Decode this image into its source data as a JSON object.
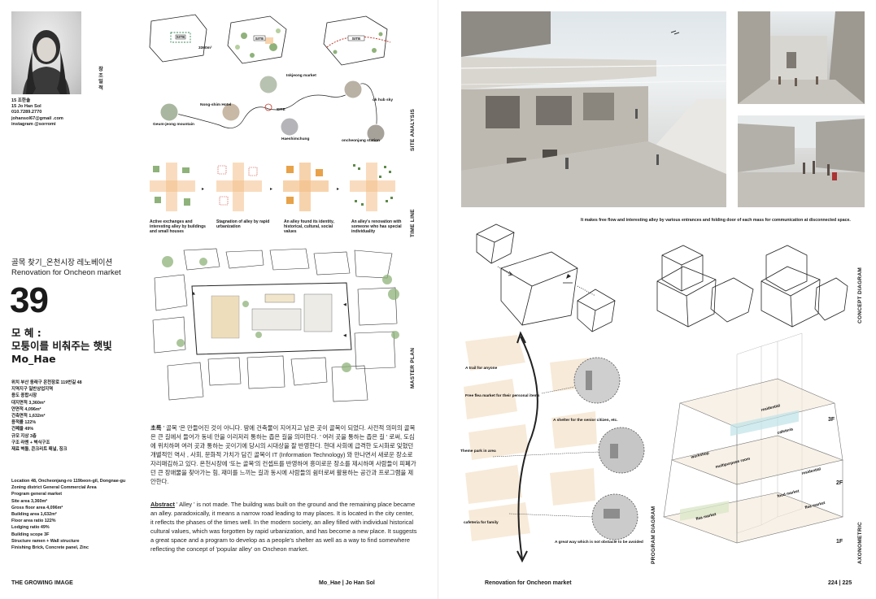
{
  "profile": {
    "name_ko_vertical": [
      "창",
      "|",
      "조",
      "일",
      "적",
      "성"
    ],
    "student_ko": "15 조한솔",
    "student_en": "15 Jo Han Sol",
    "phone": "010.7289.2770",
    "email": "johansol67@gmail .com",
    "instagram": "instagram @sorromi"
  },
  "site_analysis": {
    "label": "SITE ANALYSIS",
    "site_tags": [
      "SITE",
      "SITE",
      "SITE"
    ],
    "area": "3360m²",
    "places": [
      "Inkjeong market",
      "Nong-shim Hotel",
      "Geum-jeong mountain",
      "SITE",
      "Haeshimchung",
      "ok hub sky",
      "oncheonjang station"
    ]
  },
  "timeline": {
    "label": "TIME LINE",
    "captions": [
      "Active exchanges and interesting alley by buildings and small houses",
      "Stagnation of alley by rapid urbanization",
      "An alley found its identity, historical, cultural, social values",
      "An alley's renovation with someone who has special individuality"
    ]
  },
  "title": {
    "ko_subtitle": "골목 찾기_온천시장 레노베이션",
    "en_subtitle": "Renovation for Oncheon market",
    "number": "39",
    "author_ko": "모 혜 :",
    "tagline_ko": "모퉁이를 비춰주는 햇빛",
    "author_romaji": "Mo_Hae"
  },
  "specs_ko": [
    "위치 부산 동래구 온천장로 119번길 48",
    "지역지구 일반상업지역",
    "용도 종합시장",
    "대지면적 3,360m²",
    "연면적 4,096m²",
    "건축면적 1,632m²",
    "용적률 122%",
    "건폐율 49%",
    "규모 지상 3층",
    "구조 라멘 + 벽식구조",
    "재료 벽돌, 콘크리트 패널, 징크"
  ],
  "specs_en": [
    "Location 48, Oncheonjang-ro 119beon-gil, Dongnae-gu",
    "Zoning district General Commercial Area",
    "Program general market",
    "Site area 3,360m²",
    "Gross floor area 4,096m²",
    "Building area 1,632m²",
    "Floor area ratio 122%",
    "Lodging ratio 49%",
    "Building scope 3F",
    "Structure ramen + Wall structure",
    "Finishing Brick, Concrete panel, Zinc"
  ],
  "master_plan": {
    "label": "MASTER PLAN"
  },
  "abstract": {
    "ko_label": "초록",
    "ko_text": "' 골목 '은 만들어진 것이 아니다. 땅에 건축물이 지어지고 남은 곳이 골목이 되었다. 사전적 의미의 골목은 큰 길에서 들어가 동네 안을 이리저리 통하는 좁은 길을 의미한다. ' 여러 곳을 통하는 좁은 길 ' 로써, 도심에 위치하며 여러 곳과 통하는 곳이기에 당시의 시대상을 잘 반영한다. 현대 사회에 급격한 도시화로 잊혔던 개별적인 역사 , 사회, 문화적 가치가 담긴 골목이 IT (Information Technology) 와 만나면서 새로운 장소로 자리매김하고 있다. 온천시장에 '또는 골목'의 컨셉트를 반영하여 흥미로운 장소를 제시하며 사람들이 피폐가던 큰 장애물을 찾아가는 힘, 재미를 느끼는 길과 동시에 사람들의 쉼터로써 활용하는 공간과 프로그램을 제안한다.",
    "en_label": "Abstract",
    "en_text": "' Alley ' is not made. The buildng was built on the ground and the remaining place became an alley. paradoxically, it means a narrow road leading to may places. It is located in the city center, it reflects the phases of the times well. In the modern society, an alley filled with individual historical cultural values, which was forgotten by rapid urbanization, and has become a new place. It suggests a great space and a program to develop as a people's shelter as well as a way to find somewhere reflecting the concept of 'popular alley' on Oncheon market."
  },
  "render_caption": "It makes free flow and interesting alley by various entrances and folding door of each mass for communication at disconnected space.",
  "concept_diagram": {
    "label": "CONCEPT DIAGRAM"
  },
  "program_diagram": {
    "label": "PROGRAM DIAGRAM",
    "notes": [
      "A trail for anyone",
      "Free flea market for their personal items",
      "A shelter for the senior citizen, etc.",
      "Theme park in area",
      "cafeteria for family",
      "A great way which is not obstacle to be avoided"
    ]
  },
  "axonometric": {
    "label": "AXONOMETRIC",
    "floors": [
      "3F",
      "2F",
      "1F"
    ],
    "programs": [
      "residential",
      "cafeteria",
      "workshop",
      "multipurpose room",
      "residential",
      "food market",
      "flea market",
      "flea market"
    ]
  },
  "footer": {
    "left": "THE GROWING IMAGE",
    "center": "Mo_Hae   |   Jo Han Sol",
    "right_title": "Renovation for Oncheon market",
    "pages": "224   |   225"
  },
  "colors": {
    "accent_orange": "#f4c08a",
    "accent_green": "#8fb27a",
    "text": "#1a1a1a",
    "tan_block": "#e7cf9f"
  }
}
